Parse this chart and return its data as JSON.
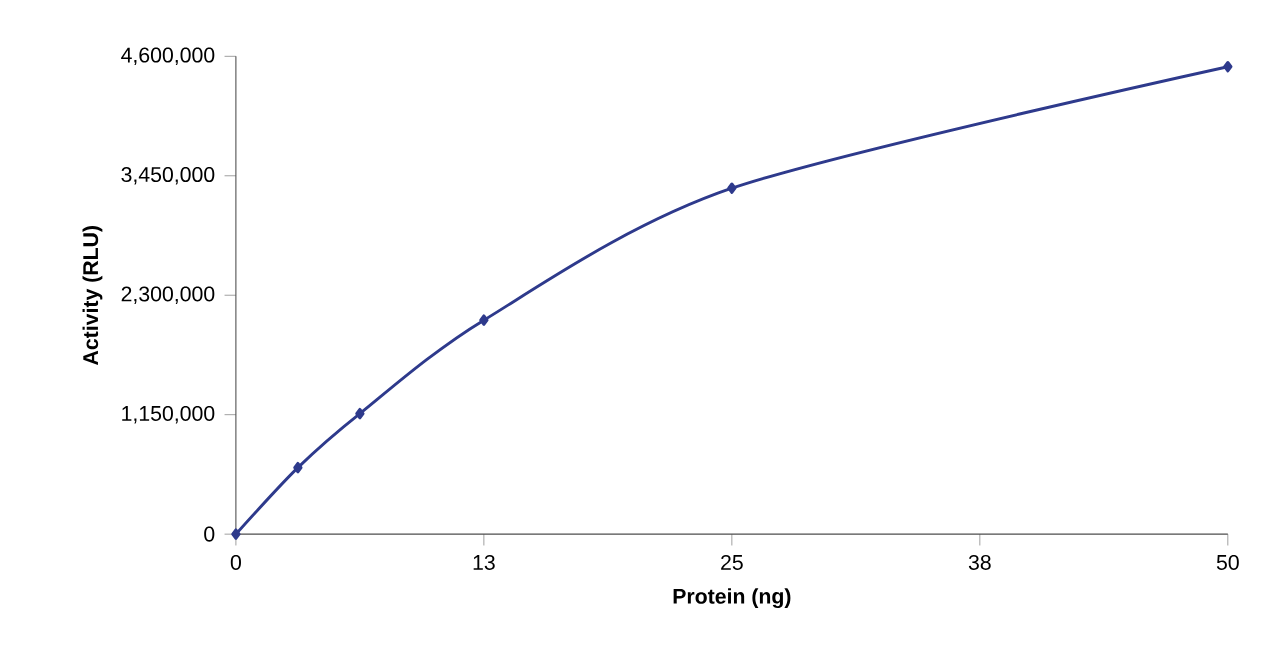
{
  "chart_data": {
    "type": "line",
    "xlabel": "Protein (ng)",
    "ylabel": "Activity (RLU)",
    "x": [
      0,
      3.125,
      6.25,
      12.5,
      25,
      50
    ],
    "series": [
      {
        "color": "#2e3a8c",
        "values": [
          0,
          640000,
          1160000,
          2060000,
          3330000,
          4500000
        ]
      }
    ],
    "xlim": [
      0,
      50
    ],
    "ylim": [
      0,
      4600000
    ],
    "xticks": [
      0,
      {
        "value": 12.5,
        "label": "13"
      },
      25,
      {
        "value": 37.5,
        "label": "38"
      },
      50
    ],
    "yticks": [
      {
        "value": 0,
        "label": "0"
      },
      {
        "value": 1150000,
        "label": "1,150,000"
      },
      {
        "value": 2300000,
        "label": "2,300,000"
      },
      {
        "value": 3450000,
        "label": "3,450,000"
      },
      {
        "value": 4600000,
        "label": "4,600,000"
      }
    ],
    "grid": false,
    "marker": "diamond",
    "line_style": "solid"
  }
}
